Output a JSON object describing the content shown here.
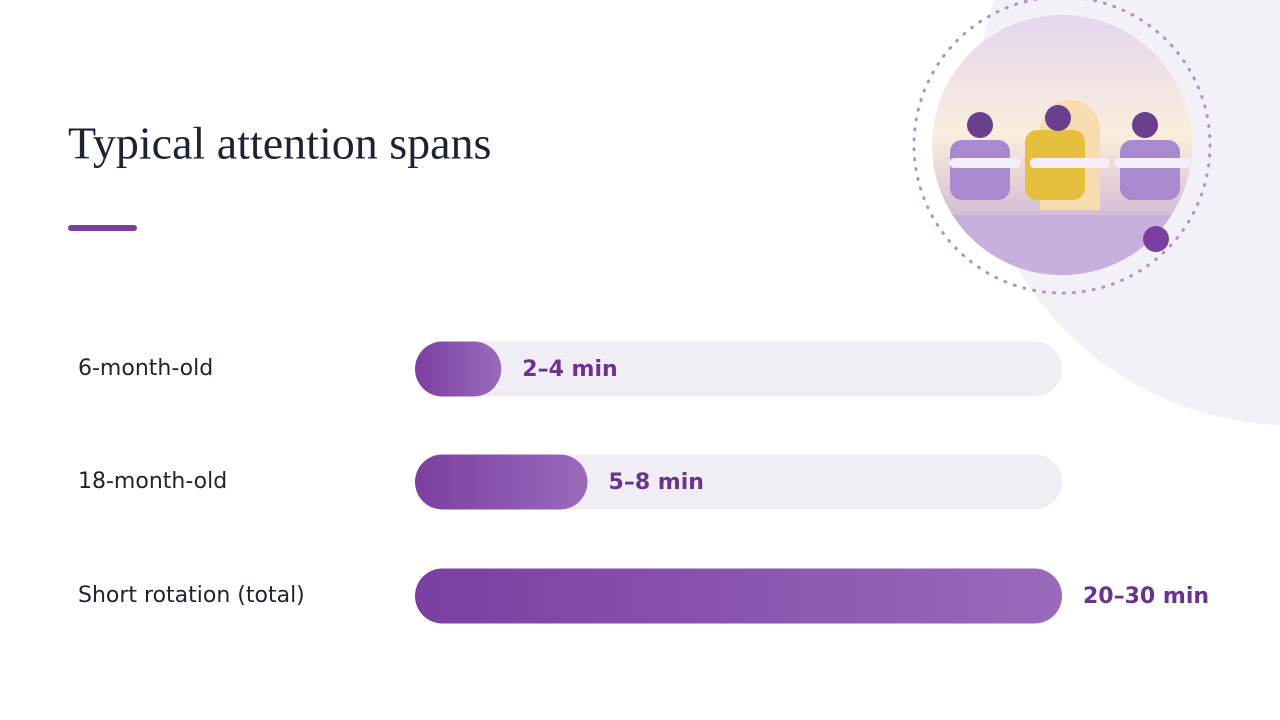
{
  "chart_data": {
    "type": "bar",
    "orientation": "horizontal",
    "title": "Typical attention spans",
    "categories": [
      "6-month-old",
      "18-month-old",
      "Short rotation (total)"
    ],
    "values": [
      4,
      8,
      30
    ],
    "value_labels": [
      "2–4 min",
      "5–8 min",
      "20–30 min"
    ],
    "xlim": [
      0,
      30
    ],
    "color": "#7b3fa0"
  }
}
